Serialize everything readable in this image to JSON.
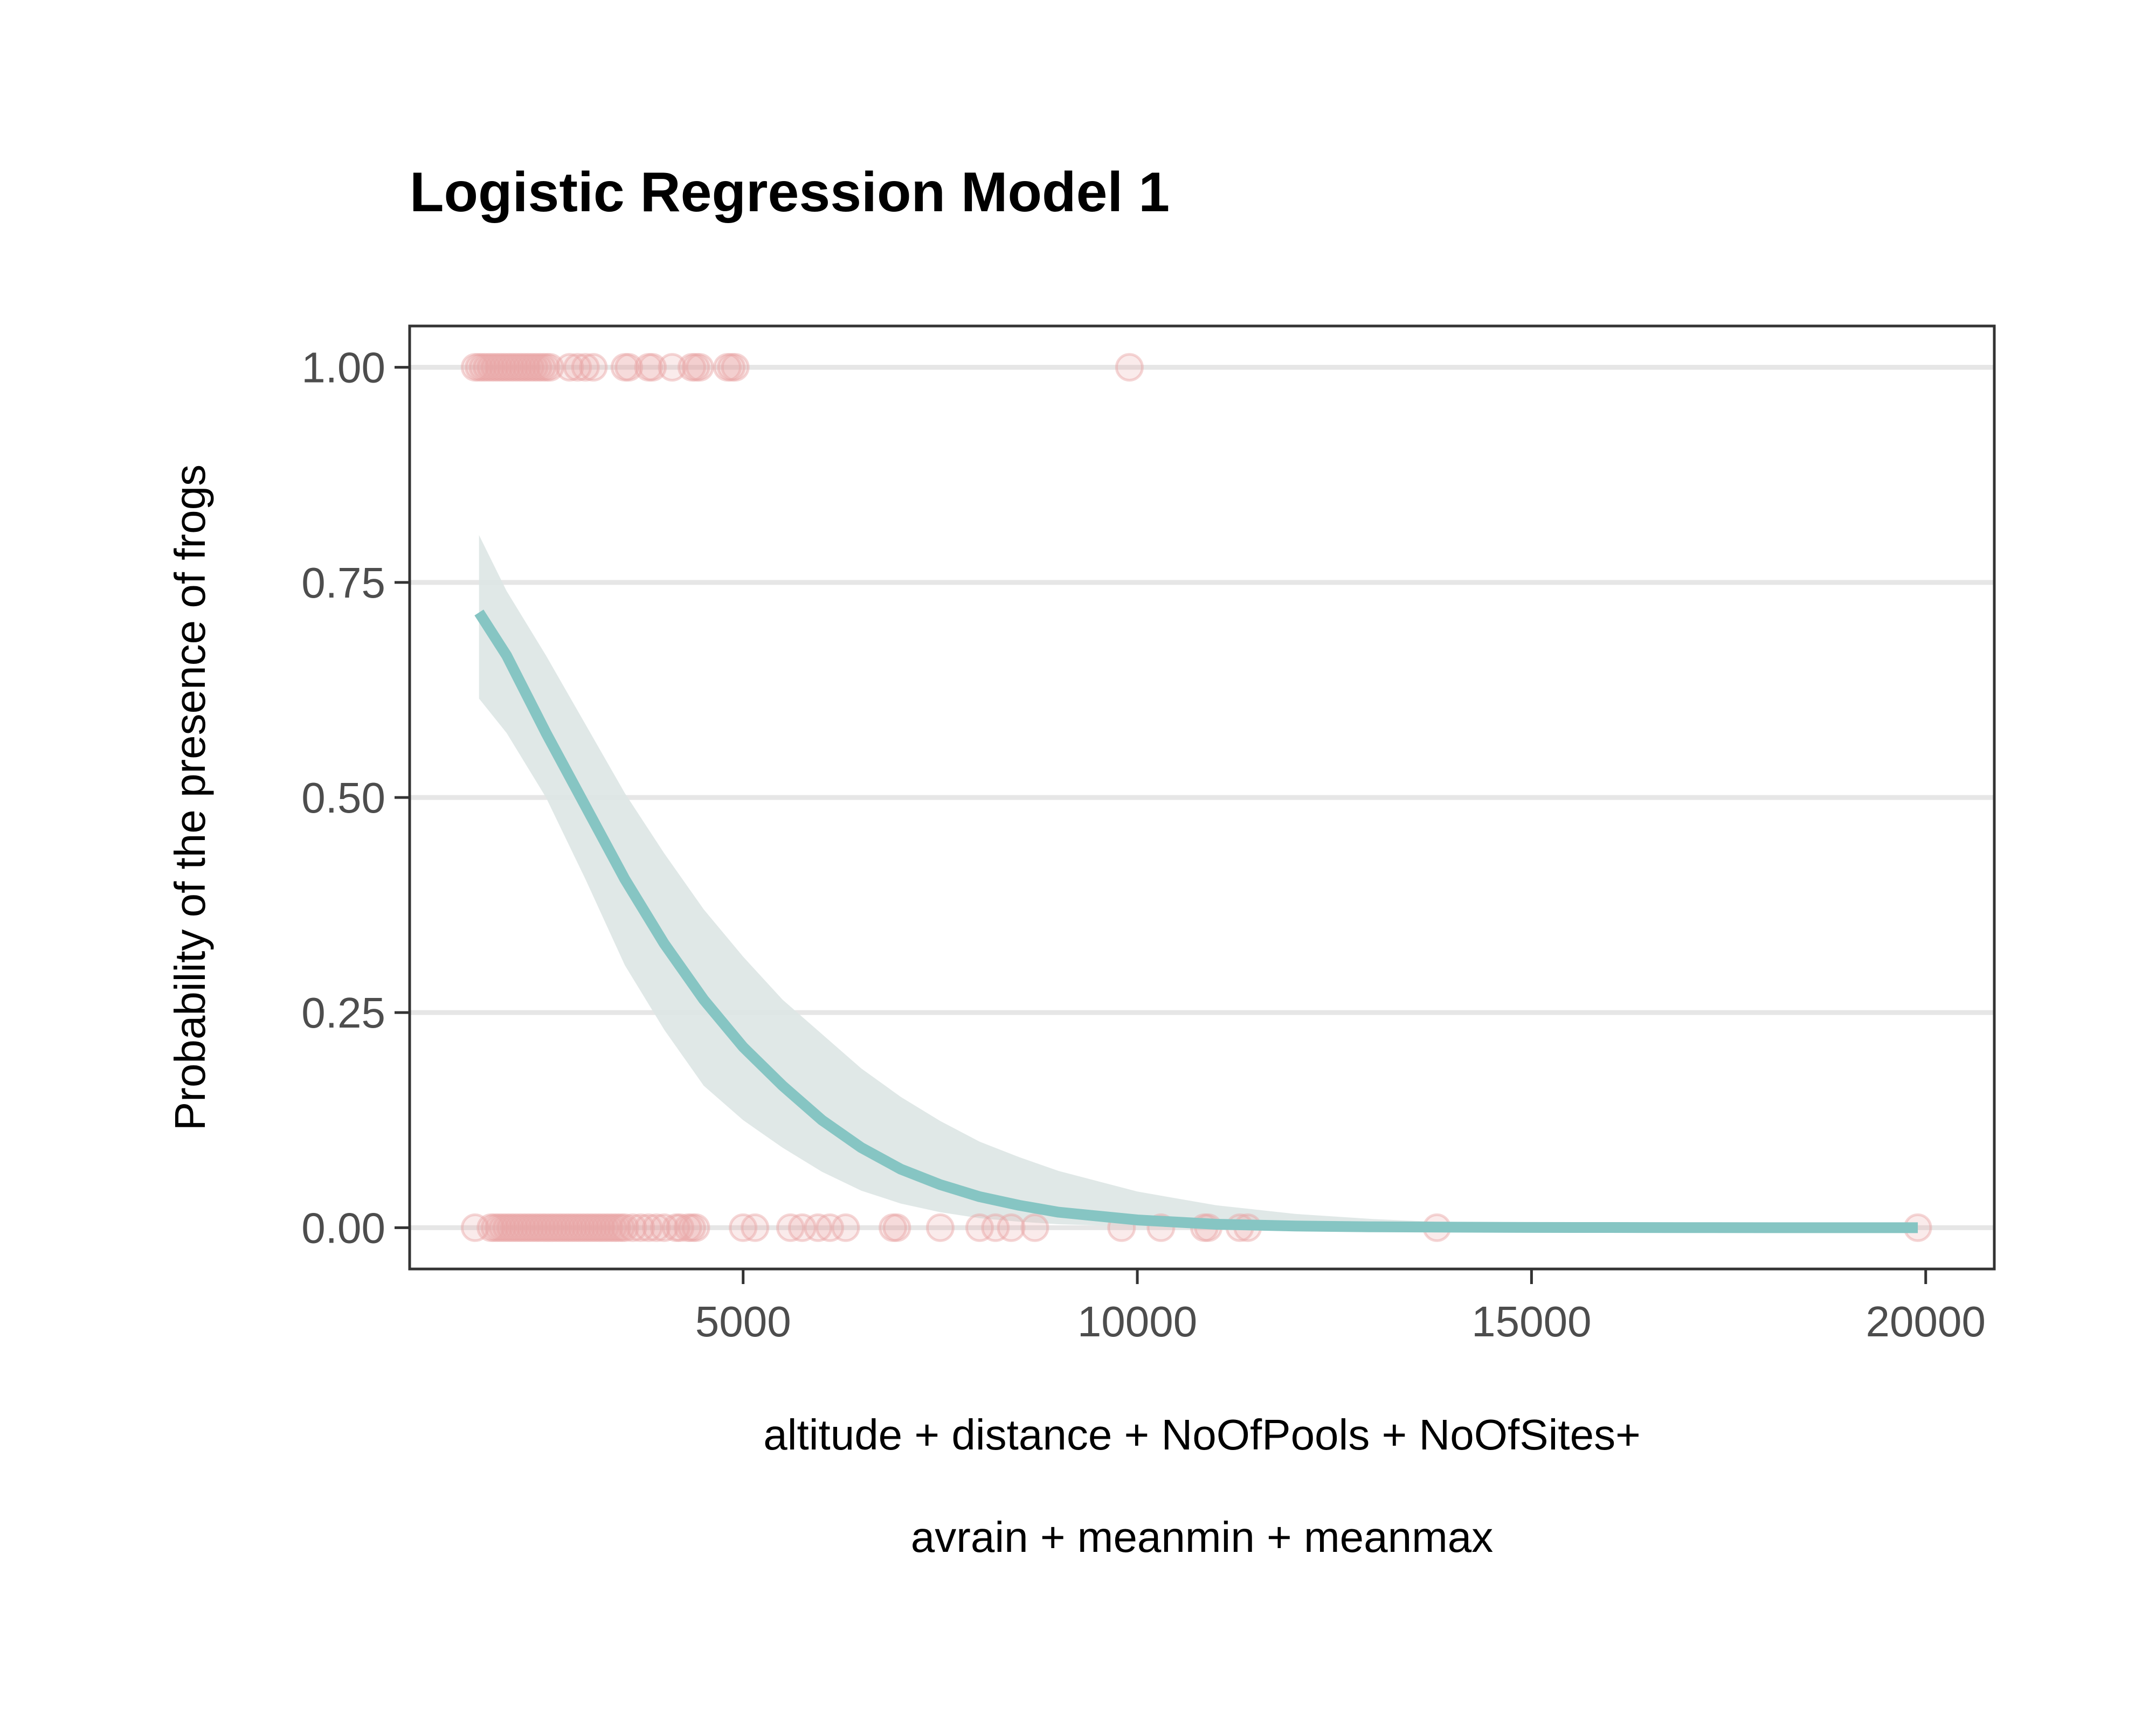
{
  "chart_data": {
    "type": "scatter",
    "title": "Logistic Regression Model 1",
    "xlabel_lines": [
      "altitude + distance + NoOfPools + NoOfSites+",
      "avrain + meanmin + meanmax"
    ],
    "ylabel": "Probability of the presence of frogs",
    "xlim": [
      770,
      20870
    ],
    "ylim": [
      -0.048,
      1.048
    ],
    "x_ticks": [
      5000,
      10000,
      15000,
      20000
    ],
    "x_tick_labels": [
      "5000",
      "10000",
      "15000",
      "20000"
    ],
    "y_ticks": [
      0,
      0.25,
      0.5,
      0.75,
      1.0
    ],
    "y_tick_labels": [
      "0.00",
      "0.25",
      "0.50",
      "0.75",
      "1.00"
    ],
    "grid": "horizontal",
    "legend": "none",
    "colors": {
      "points": "#e8a4a4",
      "fit_line": "#86c5c3",
      "ribbon": "#dde5e4",
      "grid": "#e6e6e6",
      "panel_border": "#333333"
    },
    "points_present": [
      1600,
      1650,
      1700,
      1750,
      1800,
      1850,
      1900,
      1950,
      2000,
      2050,
      2100,
      2150,
      2200,
      2250,
      2300,
      2350,
      2400,
      2450,
      2500,
      2550,
      2800,
      2900,
      3000,
      3100,
      3500,
      3550,
      3800,
      3850,
      4100,
      4350,
      4400,
      4450,
      4800,
      4850,
      4900,
      9900
    ],
    "points_absent": [
      1600,
      1800,
      1850,
      1900,
      1950,
      2000,
      2050,
      2100,
      2150,
      2200,
      2250,
      2300,
      2350,
      2400,
      2450,
      2500,
      2550,
      2600,
      2650,
      2700,
      2750,
      2800,
      2850,
      2900,
      2950,
      3000,
      3050,
      3100,
      3150,
      3200,
      3250,
      3300,
      3350,
      3400,
      3450,
      3500,
      3600,
      3700,
      3800,
      3900,
      4000,
      4150,
      4200,
      4300,
      4350,
      4400,
      5000,
      5150,
      5600,
      5750,
      5950,
      6100,
      6300,
      6900,
      6950,
      7500,
      8000,
      8200,
      8400,
      8700,
      9800,
      10300,
      10850,
      10900,
      11300,
      11400,
      13800,
      19900
    ],
    "fit_curve": {
      "x": [
        1650,
        2000,
        2500,
        3000,
        3500,
        4000,
        4500,
        5000,
        5500,
        6000,
        6500,
        7000,
        7500,
        8000,
        8500,
        9000,
        10000,
        11000,
        12000,
        13000,
        14000,
        15000,
        16000,
        17000,
        18000,
        19000,
        19900
      ],
      "y": [
        0.715,
        0.665,
        0.575,
        0.49,
        0.405,
        0.33,
        0.265,
        0.21,
        0.165,
        0.125,
        0.093,
        0.068,
        0.05,
        0.036,
        0.026,
        0.018,
        0.009,
        0.004,
        0.002,
        0.001,
        0.0006,
        0.0003,
        0.0002,
        0.0001,
        0.0,
        0.0,
        0.0
      ]
    },
    "ribbon_upper": {
      "x": [
        1650,
        2000,
        2500,
        3000,
        3500,
        4000,
        4500,
        5000,
        5500,
        6000,
        6500,
        7000,
        7500,
        8000,
        8500,
        9000,
        10000,
        11000,
        12000,
        13000,
        14000,
        15000,
        16000,
        17000,
        18000,
        19000,
        19900
      ],
      "y": [
        0.805,
        0.74,
        0.665,
        0.585,
        0.505,
        0.435,
        0.37,
        0.315,
        0.265,
        0.225,
        0.185,
        0.152,
        0.124,
        0.1,
        0.082,
        0.066,
        0.042,
        0.026,
        0.016,
        0.01,
        0.006,
        0.004,
        0.0025,
        0.0015,
        0.001,
        0.0005,
        0.0002
      ]
    },
    "ribbon_lower": {
      "x": [
        1650,
        2000,
        2500,
        3000,
        3500,
        4000,
        4500,
        5000,
        5500,
        6000,
        6500,
        7000,
        7500,
        8000,
        8500,
        9000,
        10000,
        11000,
        12000,
        13000,
        14000,
        15000,
        16000,
        17000,
        18000,
        19000,
        19900
      ],
      "y": [
        0.615,
        0.575,
        0.5,
        0.405,
        0.305,
        0.23,
        0.165,
        0.125,
        0.093,
        0.065,
        0.043,
        0.028,
        0.018,
        0.011,
        0.007,
        0.004,
        0.0015,
        0.0005,
        0.0002,
        0.0001,
        0.0,
        0.0,
        0.0,
        0.0,
        0.0,
        0.0,
        0.0
      ]
    }
  }
}
